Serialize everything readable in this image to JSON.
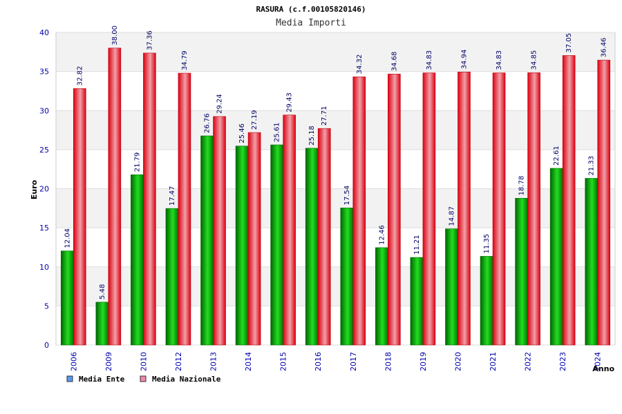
{
  "chart_data": {
    "type": "bar",
    "title": "RASURA (c.f.00105820146)",
    "subtitle": "Media Importi",
    "xlabel": "Anno",
    "ylabel": "Euro",
    "ylim": [
      0,
      40
    ],
    "yticks": [
      0,
      5,
      10,
      15,
      20,
      25,
      30,
      35,
      40
    ],
    "grid": true,
    "legend_position": "bottom-left",
    "categories": [
      "2006",
      "2009",
      "2010",
      "2012",
      "2013",
      "2014",
      "2015",
      "2016",
      "2017",
      "2018",
      "2019",
      "2020",
      "2021",
      "2022",
      "2023",
      "2024"
    ],
    "series": [
      {
        "name": "Media Ente",
        "legend_color": "#5599ee",
        "color": "#11aa11",
        "values": [
          12.04,
          5.48,
          21.79,
          17.47,
          26.76,
          25.46,
          25.61,
          25.18,
          17.54,
          12.46,
          11.21,
          14.87,
          11.35,
          18.78,
          22.61,
          21.33
        ]
      },
      {
        "name": "Media Nazionale",
        "legend_color": "#ee88aa",
        "color": "#ee1122",
        "values": [
          32.82,
          38.0,
          37.36,
          34.79,
          29.24,
          27.19,
          29.43,
          27.71,
          34.32,
          34.68,
          34.83,
          34.94,
          34.83,
          34.85,
          37.05,
          36.46
        ]
      }
    ]
  }
}
